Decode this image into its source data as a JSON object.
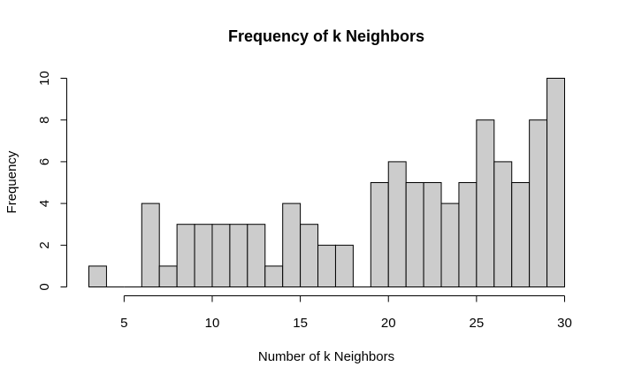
{
  "chart_data": {
    "type": "bar",
    "title": "Frequency of k Neighbors",
    "xlabel": "Number of k Neighbors",
    "ylabel": "Frequency",
    "bin_width": 1,
    "bins": [
      {
        "start": 3,
        "end": 4,
        "count": 1
      },
      {
        "start": 4,
        "end": 5,
        "count": 0
      },
      {
        "start": 5,
        "end": 6,
        "count": 0
      },
      {
        "start": 6,
        "end": 7,
        "count": 4
      },
      {
        "start": 7,
        "end": 8,
        "count": 1
      },
      {
        "start": 8,
        "end": 9,
        "count": 3
      },
      {
        "start": 9,
        "end": 10,
        "count": 3
      },
      {
        "start": 10,
        "end": 11,
        "count": 3
      },
      {
        "start": 11,
        "end": 12,
        "count": 3
      },
      {
        "start": 12,
        "end": 13,
        "count": 3
      },
      {
        "start": 13,
        "end": 14,
        "count": 1
      },
      {
        "start": 14,
        "end": 15,
        "count": 4
      },
      {
        "start": 15,
        "end": 16,
        "count": 3
      },
      {
        "start": 16,
        "end": 17,
        "count": 2
      },
      {
        "start": 17,
        "end": 18,
        "count": 2
      },
      {
        "start": 18,
        "end": 19,
        "count": 0
      },
      {
        "start": 19,
        "end": 20,
        "count": 5
      },
      {
        "start": 20,
        "end": 21,
        "count": 6
      },
      {
        "start": 21,
        "end": 22,
        "count": 5
      },
      {
        "start": 22,
        "end": 23,
        "count": 5
      },
      {
        "start": 23,
        "end": 24,
        "count": 4
      },
      {
        "start": 24,
        "end": 25,
        "count": 5
      },
      {
        "start": 25,
        "end": 26,
        "count": 8
      },
      {
        "start": 26,
        "end": 27,
        "count": 6
      },
      {
        "start": 27,
        "end": 28,
        "count": 5
      },
      {
        "start": 28,
        "end": 29,
        "count": 8
      },
      {
        "start": 29,
        "end": 30,
        "count": 10
      }
    ],
    "x_ticks": [
      5,
      10,
      15,
      20,
      25,
      30
    ],
    "y_ticks": [
      0,
      2,
      4,
      6,
      8,
      10
    ],
    "xlim": [
      3,
      30
    ],
    "ylim": [
      0,
      10
    ],
    "grid": false,
    "legend": "none",
    "colors": {
      "bar_fill": "#cccccc",
      "bar_stroke": "#000000",
      "axis": "#000000",
      "background": "#ffffff"
    }
  }
}
